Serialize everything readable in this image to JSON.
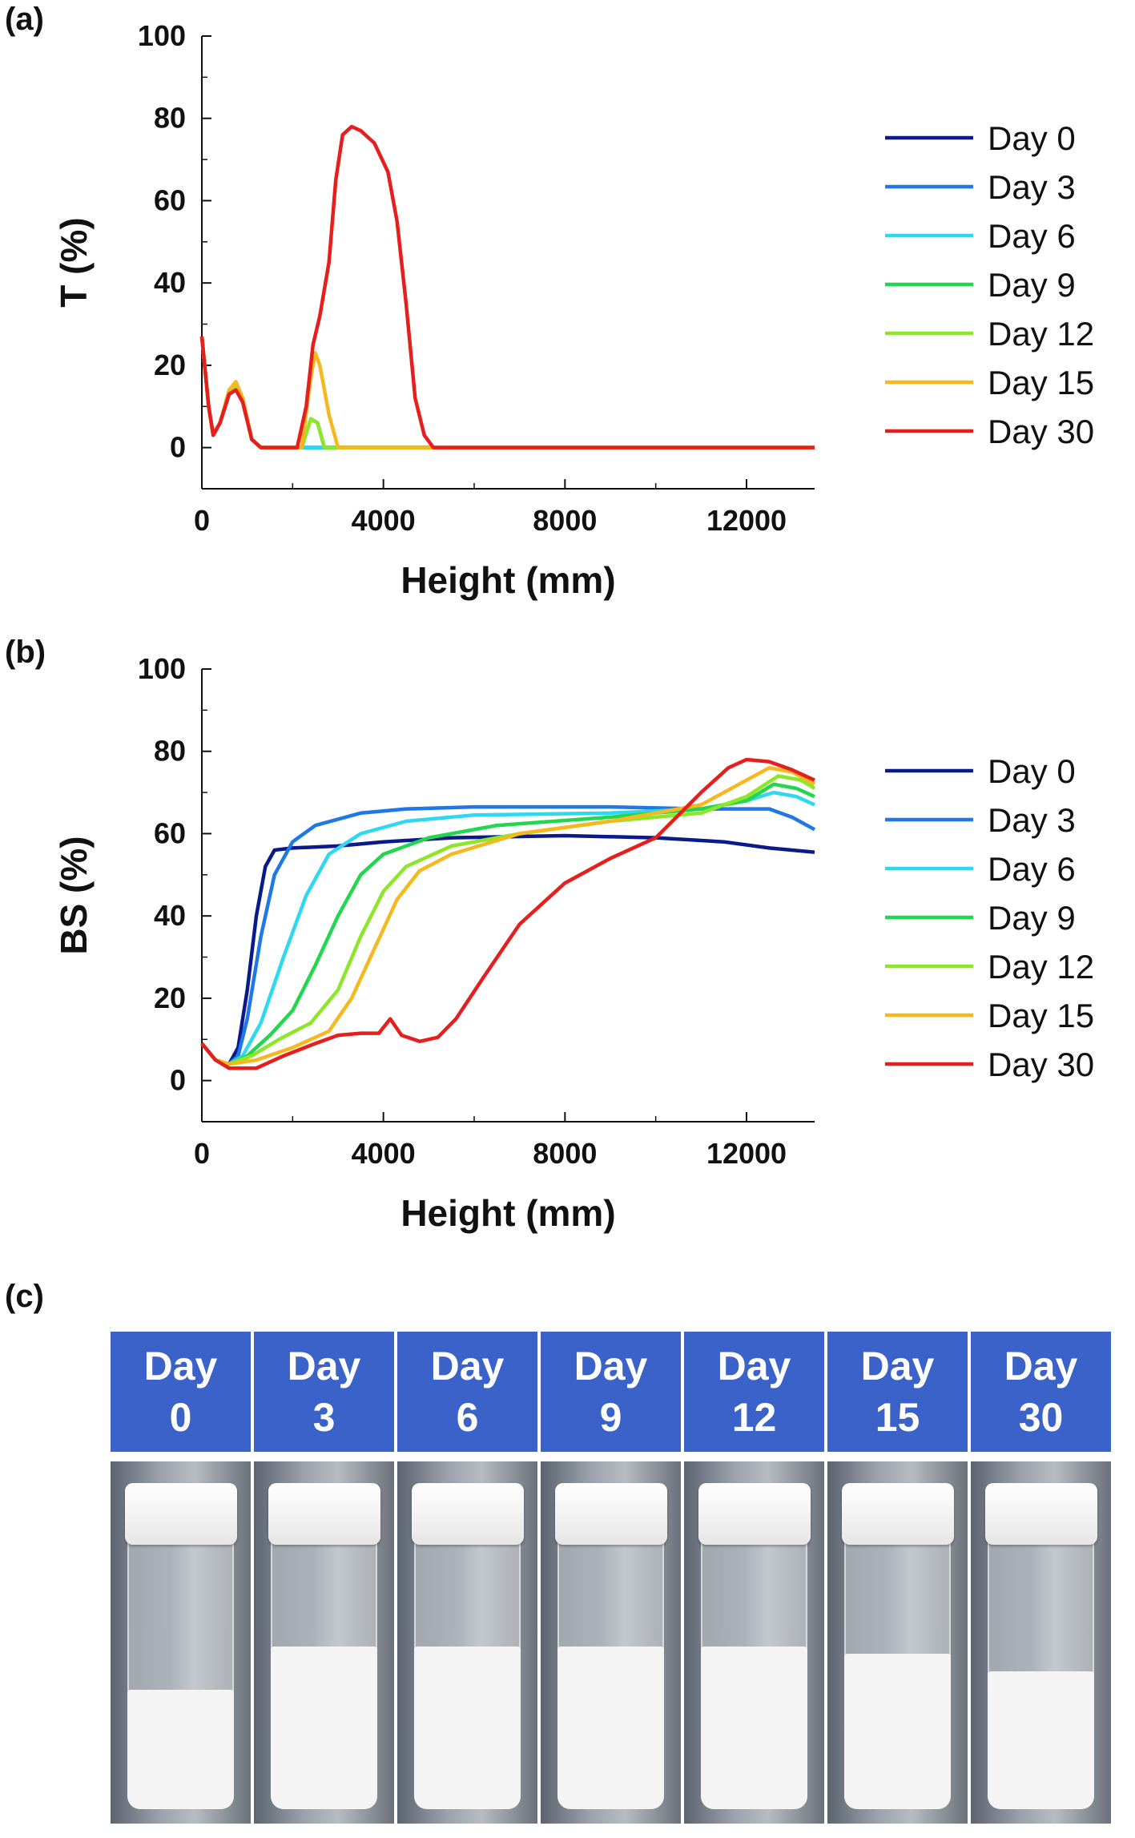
{
  "panels": {
    "a": "(a)",
    "b": "(b)",
    "c": "(c)"
  },
  "legend": [
    "Day 0",
    "Day 3",
    "Day 6",
    "Day 9",
    "Day 12",
    "Day 15",
    "Day 30"
  ],
  "colors": [
    "#0a1a8a",
    "#1e78e6",
    "#2ed8f0",
    "#22d650",
    "#8de62a",
    "#f5b81e",
    "#e61e1e"
  ],
  "chart_data": [
    {
      "type": "line",
      "panel": "(a)",
      "xlabel": "Height (mm)",
      "ylabel": "T (%)",
      "xlim": [
        0,
        13500
      ],
      "ylim": [
        -10,
        100
      ],
      "xticks": [
        0,
        4000,
        8000,
        12000
      ],
      "yticks": [
        0,
        20,
        40,
        60,
        80,
        100
      ],
      "legend_position": "right",
      "series": [
        {
          "name": "Day 0",
          "points": [
            [
              0,
              27
            ],
            [
              150,
              10
            ],
            [
              250,
              3
            ],
            [
              400,
              6
            ],
            [
              600,
              13
            ],
            [
              750,
              15
            ],
            [
              900,
              12
            ],
            [
              1100,
              2
            ],
            [
              1300,
              0
            ],
            [
              13500,
              0
            ]
          ]
        },
        {
          "name": "Day 3",
          "points": [
            [
              0,
              27
            ],
            [
              150,
              10
            ],
            [
              250,
              3
            ],
            [
              400,
              6
            ],
            [
              600,
              13
            ],
            [
              750,
              15
            ],
            [
              900,
              12
            ],
            [
              1100,
              2
            ],
            [
              1300,
              0
            ],
            [
              13500,
              0
            ]
          ]
        },
        {
          "name": "Day 6",
          "points": [
            [
              0,
              27
            ],
            [
              150,
              10
            ],
            [
              250,
              3
            ],
            [
              400,
              6
            ],
            [
              600,
              13
            ],
            [
              750,
              15
            ],
            [
              900,
              12
            ],
            [
              1100,
              2
            ],
            [
              1300,
              0
            ],
            [
              13500,
              0
            ]
          ]
        },
        {
          "name": "Day 9",
          "points": [
            [
              0,
              27
            ],
            [
              150,
              10
            ],
            [
              250,
              3
            ],
            [
              400,
              6
            ],
            [
              600,
              13
            ],
            [
              750,
              15
            ],
            [
              900,
              12
            ],
            [
              1100,
              2
            ],
            [
              1300,
              0
            ],
            [
              2200,
              0
            ],
            [
              2400,
              7
            ],
            [
              2550,
              6
            ],
            [
              2700,
              0
            ],
            [
              13500,
              0
            ]
          ]
        },
        {
          "name": "Day 12",
          "points": [
            [
              0,
              27
            ],
            [
              150,
              10
            ],
            [
              250,
              3
            ],
            [
              400,
              6
            ],
            [
              600,
              13
            ],
            [
              750,
              15
            ],
            [
              900,
              12
            ],
            [
              1100,
              2
            ],
            [
              1300,
              0
            ],
            [
              2200,
              0
            ],
            [
              2400,
              7
            ],
            [
              2550,
              6
            ],
            [
              2700,
              0
            ],
            [
              13500,
              0
            ]
          ]
        },
        {
          "name": "Day 15",
          "points": [
            [
              0,
              27
            ],
            [
              150,
              10
            ],
            [
              250,
              3
            ],
            [
              400,
              6
            ],
            [
              600,
              14
            ],
            [
              750,
              16
            ],
            [
              900,
              12
            ],
            [
              1100,
              2
            ],
            [
              1300,
              0
            ],
            [
              2200,
              0
            ],
            [
              2400,
              17
            ],
            [
              2500,
              23
            ],
            [
              2600,
              20
            ],
            [
              2800,
              8
            ],
            [
              3000,
              0
            ],
            [
              13500,
              0
            ]
          ]
        },
        {
          "name": "Day 30",
          "points": [
            [
              0,
              27
            ],
            [
              150,
              10
            ],
            [
              250,
              3
            ],
            [
              400,
              6
            ],
            [
              600,
              13
            ],
            [
              750,
              14
            ],
            [
              900,
              11
            ],
            [
              1100,
              2
            ],
            [
              1300,
              0
            ],
            [
              2100,
              0
            ],
            [
              2300,
              10
            ],
            [
              2450,
              25
            ],
            [
              2600,
              32
            ],
            [
              2800,
              45
            ],
            [
              2950,
              65
            ],
            [
              3100,
              76
            ],
            [
              3300,
              78
            ],
            [
              3500,
              77
            ],
            [
              3800,
              74
            ],
            [
              4100,
              67
            ],
            [
              4300,
              55
            ],
            [
              4500,
              35
            ],
            [
              4700,
              12
            ],
            [
              4900,
              3
            ],
            [
              5100,
              0
            ],
            [
              13500,
              0
            ]
          ]
        }
      ]
    },
    {
      "type": "line",
      "panel": "(b)",
      "xlabel": "Height (mm)",
      "ylabel": "BS (%)",
      "xlim": [
        0,
        13500
      ],
      "ylim": [
        -10,
        100
      ],
      "xticks": [
        0,
        4000,
        8000,
        12000
      ],
      "yticks": [
        0,
        20,
        40,
        60,
        80,
        100
      ],
      "legend_position": "right",
      "series": [
        {
          "name": "Day 0",
          "points": [
            [
              0,
              9
            ],
            [
              300,
              5
            ],
            [
              600,
              4
            ],
            [
              800,
              8
            ],
            [
              1000,
              22
            ],
            [
              1200,
              40
            ],
            [
              1400,
              52
            ],
            [
              1600,
              56
            ],
            [
              2000,
              56.5
            ],
            [
              3000,
              57
            ],
            [
              4000,
              58
            ],
            [
              5500,
              59
            ],
            [
              8000,
              59.5
            ],
            [
              10000,
              59
            ],
            [
              11500,
              58
            ],
            [
              12500,
              56.5
            ],
            [
              13500,
              55.5
            ]
          ]
        },
        {
          "name": "Day 3",
          "points": [
            [
              0,
              9
            ],
            [
              300,
              5
            ],
            [
              600,
              4
            ],
            [
              800,
              6
            ],
            [
              1000,
              15
            ],
            [
              1300,
              35
            ],
            [
              1600,
              50
            ],
            [
              2000,
              58
            ],
            [
              2500,
              62
            ],
            [
              3500,
              65
            ],
            [
              4500,
              66
            ],
            [
              6000,
              66.5
            ],
            [
              9000,
              66.5
            ],
            [
              11000,
              66
            ],
            [
              12500,
              66
            ],
            [
              13000,
              64
            ],
            [
              13500,
              61
            ]
          ]
        },
        {
          "name": "Day 6",
          "points": [
            [
              0,
              9
            ],
            [
              300,
              5
            ],
            [
              600,
              4
            ],
            [
              900,
              6
            ],
            [
              1300,
              14
            ],
            [
              1800,
              30
            ],
            [
              2300,
              45
            ],
            [
              2800,
              55
            ],
            [
              3500,
              60
            ],
            [
              4500,
              63
            ],
            [
              6000,
              64.5
            ],
            [
              9000,
              65
            ],
            [
              11000,
              66
            ],
            [
              12000,
              68
            ],
            [
              12600,
              70
            ],
            [
              13100,
              69
            ],
            [
              13500,
              67
            ]
          ]
        },
        {
          "name": "Day 9",
          "points": [
            [
              0,
              9
            ],
            [
              300,
              5
            ],
            [
              600,
              4
            ],
            [
              1000,
              6
            ],
            [
              1500,
              11
            ],
            [
              2000,
              17
            ],
            [
              2500,
              28
            ],
            [
              3000,
              40
            ],
            [
              3500,
              50
            ],
            [
              4000,
              55
            ],
            [
              5000,
              59
            ],
            [
              6500,
              62
            ],
            [
              9000,
              64
            ],
            [
              11000,
              66
            ],
            [
              12000,
              68
            ],
            [
              12600,
              72
            ],
            [
              13100,
              71
            ],
            [
              13500,
              69
            ]
          ]
        },
        {
          "name": "Day 12",
          "points": [
            [
              0,
              9
            ],
            [
              300,
              5
            ],
            [
              600,
              4
            ],
            [
              1100,
              6
            ],
            [
              1700,
              10
            ],
            [
              2400,
              14
            ],
            [
              3000,
              22
            ],
            [
              3500,
              35
            ],
            [
              4000,
              46
            ],
            [
              4500,
              52
            ],
            [
              5500,
              57
            ],
            [
              7000,
              60
            ],
            [
              9000,
              63
            ],
            [
              11000,
              65
            ],
            [
              12000,
              69
            ],
            [
              12700,
              74
            ],
            [
              13200,
              73
            ],
            [
              13500,
              71
            ]
          ]
        },
        {
          "name": "Day 15",
          "points": [
            [
              0,
              9
            ],
            [
              300,
              5
            ],
            [
              600,
              4
            ],
            [
              1200,
              5
            ],
            [
              2000,
              8
            ],
            [
              2800,
              12
            ],
            [
              3300,
              20
            ],
            [
              3800,
              32
            ],
            [
              4300,
              44
            ],
            [
              4800,
              51
            ],
            [
              5500,
              55
            ],
            [
              7000,
              60
            ],
            [
              9000,
              63
            ],
            [
              11000,
              67
            ],
            [
              12000,
              73
            ],
            [
              12500,
              76
            ],
            [
              13000,
              75
            ],
            [
              13500,
              72
            ]
          ]
        },
        {
          "name": "Day 30",
          "points": [
            [
              0,
              9
            ],
            [
              300,
              5
            ],
            [
              600,
              3
            ],
            [
              1200,
              3
            ],
            [
              1800,
              6
            ],
            [
              2500,
              9
            ],
            [
              3000,
              11
            ],
            [
              3500,
              11.5
            ],
            [
              3900,
              11.5
            ],
            [
              4150,
              15
            ],
            [
              4400,
              11
            ],
            [
              4800,
              9.5
            ],
            [
              5200,
              10.5
            ],
            [
              5600,
              15
            ],
            [
              6200,
              25
            ],
            [
              7000,
              38
            ],
            [
              8000,
              48
            ],
            [
              9000,
              54
            ],
            [
              10000,
              59
            ],
            [
              11000,
              70
            ],
            [
              11600,
              76
            ],
            [
              12000,
              78
            ],
            [
              12500,
              77.5
            ],
            [
              13000,
              75.5
            ],
            [
              13500,
              73
            ]
          ]
        }
      ]
    }
  ],
  "photo_strip": {
    "headers": [
      {
        "line1": "Day",
        "line2": "0"
      },
      {
        "line1": "Day",
        "line2": "3"
      },
      {
        "line1": "Day",
        "line2": "6"
      },
      {
        "line1": "Day",
        "line2": "9"
      },
      {
        "line1": "Day",
        "line2": "12"
      },
      {
        "line1": "Day",
        "line2": "15"
      },
      {
        "line1": "Day",
        "line2": "30"
      }
    ],
    "sediment_fill": [
      0.33,
      0.45,
      0.45,
      0.45,
      0.45,
      0.43,
      0.38
    ]
  }
}
